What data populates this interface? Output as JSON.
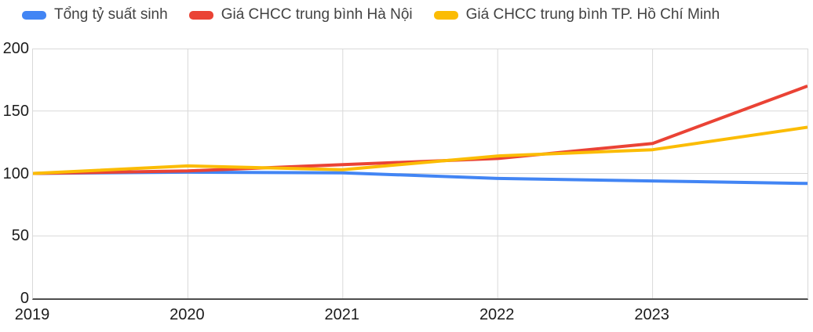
{
  "chart_data": {
    "type": "line",
    "title": "",
    "xlabel": "",
    "ylabel": "",
    "x": [
      2019,
      2020,
      2021,
      2022,
      2023,
      2024
    ],
    "xtick_labels": [
      "2019",
      "2020",
      "2021",
      "2022",
      "2023"
    ],
    "yticks": [
      0,
      50,
      100,
      150,
      200
    ],
    "xlim": [
      2019,
      2024
    ],
    "ylim": [
      0,
      200
    ],
    "grid": true,
    "legend_position": "top",
    "series": [
      {
        "name": "Tổng tỷ suất sinh",
        "color": "#4285F4",
        "values": [
          100,
          101,
          100.5,
          96,
          94,
          92
        ]
      },
      {
        "name": "Giá CHCC trung bình Hà Nội",
        "color": "#EA4335",
        "values": [
          100,
          102,
          107,
          112,
          124,
          170
        ]
      },
      {
        "name": "Giá CHCC trung bình TP. Hồ Chí Minh",
        "color": "#FBBC04",
        "values": [
          100,
          106,
          103,
          114,
          119,
          137
        ]
      }
    ],
    "colors": {
      "grid": "#d9d9d9",
      "axis_line": "#4d4d4d",
      "tick_label": "#1c1c1c",
      "legend_text": "#424242",
      "background": "#ffffff"
    }
  }
}
